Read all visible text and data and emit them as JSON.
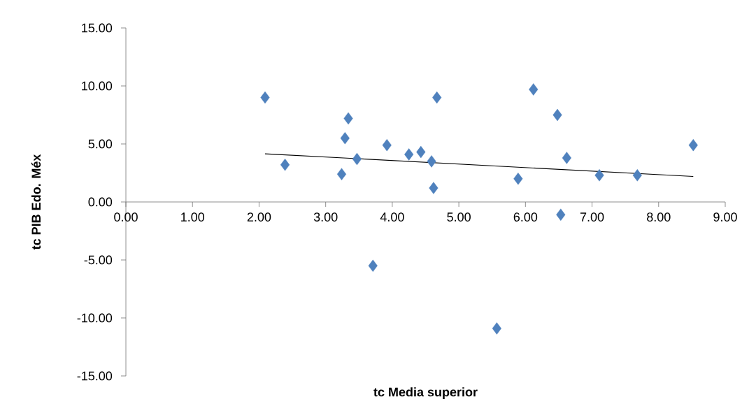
{
  "chart_data": {
    "type": "scatter",
    "xlabel": "tc Media superior",
    "ylabel": "tc PIB Edo. Méx",
    "xlim": [
      0,
      9
    ],
    "ylim": [
      -15,
      15
    ],
    "xticks": [
      {
        "value": 0,
        "label": "0.00"
      },
      {
        "value": 1,
        "label": "1.00"
      },
      {
        "value": 2,
        "label": "2.00"
      },
      {
        "value": 3,
        "label": "3.00"
      },
      {
        "value": 4,
        "label": "4.00"
      },
      {
        "value": 5,
        "label": "5.00"
      },
      {
        "value": 6,
        "label": "6.00"
      },
      {
        "value": 7,
        "label": "7.00"
      },
      {
        "value": 8,
        "label": "8.00"
      },
      {
        "value": 9,
        "label": "9.00"
      }
    ],
    "yticks": [
      {
        "value": -15,
        "label": "-15.00"
      },
      {
        "value": -10,
        "label": "-10.00"
      },
      {
        "value": -5,
        "label": "-5.00"
      },
      {
        "value": 0,
        "label": "0.00"
      },
      {
        "value": 5,
        "label": "5.00"
      },
      {
        "value": 10,
        "label": "10.00"
      },
      {
        "value": 15,
        "label": "15.00"
      }
    ],
    "series": [
      {
        "type": "scatter",
        "color": "#4f81bd",
        "marker": "diamond",
        "x": [
          2.09,
          2.39,
          3.24,
          3.29,
          3.34,
          3.47,
          3.71,
          3.92,
          4.25,
          4.43,
          4.59,
          4.62,
          4.67,
          5.57,
          5.89,
          6.12,
          6.48,
          6.53,
          6.62,
          7.11,
          7.68,
          8.52
        ],
        "values": [
          9.0,
          3.2,
          2.4,
          5.5,
          7.2,
          3.7,
          -5.5,
          4.9,
          4.1,
          4.3,
          3.5,
          1.2,
          9.0,
          -10.9,
          2.0,
          9.7,
          7.5,
          -1.1,
          3.8,
          2.3,
          2.3,
          4.9
        ]
      },
      {
        "type": "line",
        "color": "#000000",
        "marker": "none",
        "line_style": "solid",
        "x": [
          2.09,
          8.52
        ],
        "values": [
          4.15,
          2.2
        ]
      }
    ]
  }
}
